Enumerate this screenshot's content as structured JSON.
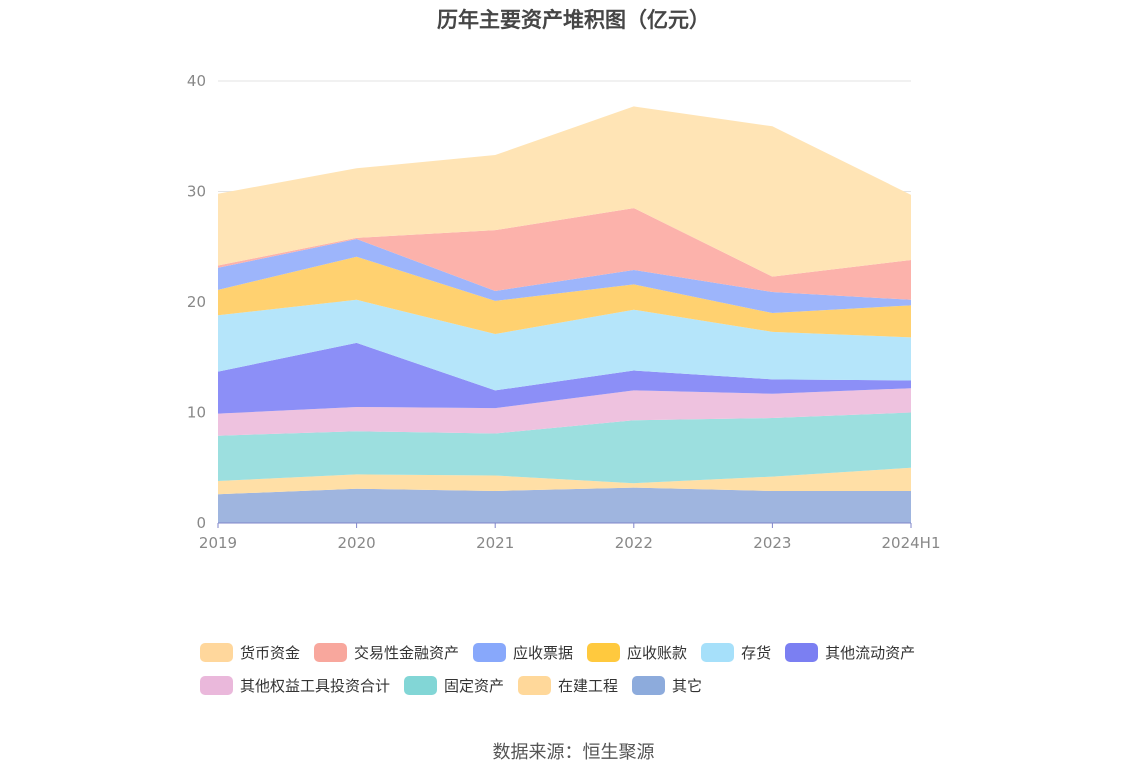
{
  "chart_data": {
    "type": "area",
    "stacked": true,
    "title": "历年主要资产堆积图（亿元）",
    "categories": [
      "2019",
      "2020",
      "2021",
      "2022",
      "2023",
      "2024H1"
    ],
    "ylim": [
      0,
      40
    ],
    "yticks": [
      "0",
      "10",
      "20",
      "30",
      "40"
    ],
    "grid": true,
    "legend_position": "bottom",
    "series": [
      {
        "name": "其它",
        "color": "#9fb5df",
        "values": [
          2.6,
          3.1,
          2.9,
          3.2,
          2.9,
          2.9
        ]
      },
      {
        "name": "在建工程",
        "color": "#ffdfa6",
        "values": [
          1.2,
          1.3,
          1.4,
          0.4,
          1.3,
          2.1
        ]
      },
      {
        "name": "固定资产",
        "color": "#9cdfdf",
        "values": [
          4.1,
          3.9,
          3.8,
          5.7,
          5.3,
          5.0
        ]
      },
      {
        "name": "其他权益工具投资合计",
        "color": "#eec2df",
        "values": [
          2.0,
          2.2,
          2.3,
          2.7,
          2.2,
          2.2
        ]
      },
      {
        "name": "其他流动资产",
        "color": "#8c8ff7",
        "values": [
          3.8,
          5.8,
          1.6,
          1.8,
          1.3,
          0.7
        ]
      },
      {
        "name": "存货",
        "color": "#b5e5fa",
        "values": [
          5.1,
          3.9,
          5.1,
          5.5,
          4.3,
          3.9
        ]
      },
      {
        "name": "应收账款",
        "color": "#ffd170",
        "values": [
          2.3,
          3.9,
          3.0,
          2.3,
          1.7,
          2.9
        ]
      },
      {
        "name": "应收票据",
        "color": "#9db5fb",
        "values": [
          2.0,
          1.6,
          0.9,
          1.3,
          1.9,
          0.5
        ]
      },
      {
        "name": "交易性金融资产",
        "color": "#fcb2ab",
        "values": [
          0.2,
          0.1,
          5.5,
          5.6,
          1.4,
          3.6
        ]
      },
      {
        "name": "货币资金",
        "color": "#ffe4b5",
        "values": [
          6.5,
          6.3,
          6.8,
          9.2,
          13.6,
          5.9
        ]
      }
    ]
  },
  "legend": [
    {
      "label": "货币资金",
      "color": "#ffd79c"
    },
    {
      "label": "交易性金融资产",
      "color": "#f8a79d"
    },
    {
      "label": "应收票据",
      "color": "#88a8fb"
    },
    {
      "label": "应收账款",
      "color": "#ffc93e"
    },
    {
      "label": "存货",
      "color": "#a6e0fa"
    },
    {
      "label": "其他流动资产",
      "color": "#7b7ff2"
    },
    {
      "label": "其他权益工具投资合计",
      "color": "#eab8db"
    },
    {
      "label": "固定资产",
      "color": "#82d6d6"
    },
    {
      "label": "在建工程",
      "color": "#ffd89a"
    },
    {
      "label": "其它",
      "color": "#8dabdc"
    }
  ],
  "source": "数据来源：恒生聚源"
}
